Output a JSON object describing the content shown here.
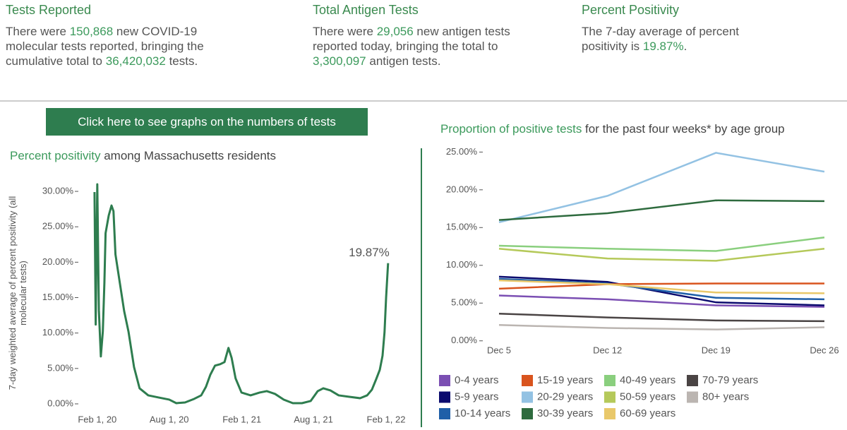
{
  "highlight_color": "#3c9a5c",
  "stats": [
    {
      "title": "Tests Reported",
      "parts": [
        "There were ",
        "150,868",
        " new COVID-19 molecular tests reported, bringing the cumulative total to ",
        "36,420,032",
        " tests."
      ]
    },
    {
      "title": "Total Antigen Tests",
      "parts": [
        "There were ",
        "29,056",
        " new antigen tests reported today, bringing the total to ",
        "3,300,097",
        " antigen tests."
      ]
    },
    {
      "title": "Percent Positivity",
      "parts": [
        "The 7-day average of percent positivity is ",
        "19.87%",
        "."
      ]
    }
  ],
  "button": "Click here to see graphs on the numbers of tests",
  "chart_data": [
    {
      "type": "line",
      "title": [
        "Percent positivity",
        " among Massachusetts residents"
      ],
      "ylabel": "7-day weighted average of percent positivity (all molecular tests)",
      "color": "#2e7d4f",
      "x": [
        "2020-01-25",
        "2020-01-28",
        "2020-02-01",
        "2020-02-05",
        "2020-02-10",
        "2020-02-15",
        "2020-02-19",
        "2020-02-22",
        "2020-03-01",
        "2020-03-08",
        "2020-03-13",
        "2020-03-18",
        "2020-03-29",
        "2020-04-09",
        "2020-04-20",
        "2020-05-04",
        "2020-05-18",
        "2020-06-09",
        "2020-07-05",
        "2020-08-01",
        "2020-08-19",
        "2020-09-10",
        "2020-10-03",
        "2020-10-21",
        "2020-11-02",
        "2020-11-13",
        "2020-11-25",
        "2020-12-08",
        "2020-12-19",
        "2020-12-29",
        "2021-01-06",
        "2021-01-16",
        "2021-01-31",
        "2021-02-23",
        "2021-03-18",
        "2021-04-05",
        "2021-04-26",
        "2021-05-18",
        "2021-06-10",
        "2021-07-03",
        "2021-07-25",
        "2021-08-12",
        "2021-08-26",
        "2021-09-13",
        "2021-10-04",
        "2021-10-31",
        "2021-11-27",
        "2021-12-15",
        "2021-12-27",
        "2022-01-07",
        "2022-01-16",
        "2022-01-23",
        "2022-01-28",
        "2022-02-01",
        "2022-02-06"
      ],
      "values": [
        29.9,
        11.2,
        31.0,
        13.2,
        6.7,
        10.2,
        17.1,
        24.1,
        26.6,
        28.0,
        27.2,
        21.1,
        17.1,
        13.1,
        10.2,
        5.2,
        2.2,
        1.2,
        0.9,
        0.6,
        0.1,
        0.2,
        0.7,
        1.2,
        2.4,
        4.1,
        5.4,
        5.6,
        5.9,
        7.9,
        6.5,
        3.6,
        1.6,
        1.2,
        1.6,
        1.8,
        1.4,
        0.6,
        0.1,
        0.1,
        0.4,
        1.8,
        2.2,
        1.9,
        1.2,
        1.0,
        0.8,
        1.2,
        2.0,
        3.5,
        4.8,
        6.8,
        10.1,
        15.0,
        19.87
      ],
      "annotation": {
        "label": "19.87%",
        "x": "2022-02-06",
        "y": 19.87
      },
      "xlim": [
        "2019-12-24",
        "2022-03-23"
      ],
      "xticks": [
        {
          "value": "2020-02-01",
          "label": "Feb 1, 20"
        },
        {
          "value": "2020-08-01",
          "label": "Aug 1, 20"
        },
        {
          "value": "2021-02-01",
          "label": "Feb 1, 21"
        },
        {
          "value": "2021-08-01",
          "label": "Aug 1, 21"
        },
        {
          "value": "2022-02-01",
          "label": "Feb 1, 22"
        }
      ],
      "ylim": [
        -0.5,
        31
      ],
      "yticks": [
        {
          "value": 0,
          "label": "0.00%"
        },
        {
          "value": 5,
          "label": "5.00%"
        },
        {
          "value": 10,
          "label": "10.00%"
        },
        {
          "value": 15,
          "label": "15.00%"
        },
        {
          "value": 20,
          "label": "20.00%"
        },
        {
          "value": 25,
          "label": "25.00%"
        },
        {
          "value": 30,
          "label": "30.00%"
        }
      ]
    },
    {
      "type": "line",
      "title": [
        "Proportion of positive tests",
        " for the past four weeks* by age group"
      ],
      "categories": [
        "Dec 5",
        "Dec 12",
        "Dec 19",
        "Dec 26"
      ],
      "series": [
        {
          "name": "0-4 years",
          "color": "#7b4fb3",
          "values": [
            6.0,
            5.5,
            4.7,
            4.5
          ]
        },
        {
          "name": "5-9 years",
          "color": "#0b0b6e",
          "values": [
            8.5,
            7.8,
            5.1,
            4.7
          ]
        },
        {
          "name": "10-14 years",
          "color": "#1f5fa8",
          "values": [
            8.2,
            7.6,
            5.7,
            5.5
          ]
        },
        {
          "name": "15-19 years",
          "color": "#d9541e",
          "values": [
            6.9,
            7.5,
            7.6,
            7.6
          ]
        },
        {
          "name": "20-29 years",
          "color": "#93c2e3",
          "values": [
            15.7,
            19.2,
            24.9,
            22.4
          ]
        },
        {
          "name": "30-39 years",
          "color": "#2e6b3e",
          "values": [
            16.0,
            16.9,
            18.6,
            18.5
          ]
        },
        {
          "name": "40-49 years",
          "color": "#8acf7e",
          "values": [
            12.6,
            12.2,
            11.9,
            13.7
          ]
        },
        {
          "name": "50-59 years",
          "color": "#b5c95a",
          "values": [
            12.2,
            10.9,
            10.6,
            12.2
          ]
        },
        {
          "name": "60-69 years",
          "color": "#e9c86a",
          "values": [
            8.0,
            7.5,
            6.4,
            6.3
          ]
        },
        {
          "name": "70-79 years",
          "color": "#4a4444",
          "values": [
            3.6,
            3.1,
            2.7,
            2.6
          ]
        },
        {
          "name": "80+ years",
          "color": "#bbb5b1",
          "values": [
            2.1,
            1.7,
            1.5,
            1.8
          ]
        }
      ],
      "ylim": [
        -0.4,
        25.5
      ],
      "yticks": [
        {
          "value": 0,
          "label": "0.00%"
        },
        {
          "value": 5,
          "label": "5.00%"
        },
        {
          "value": 10,
          "label": "10.00%"
        },
        {
          "value": 15,
          "label": "15.00%"
        },
        {
          "value": 20,
          "label": "20.00%"
        },
        {
          "value": 25,
          "label": "25.00%"
        }
      ]
    }
  ]
}
